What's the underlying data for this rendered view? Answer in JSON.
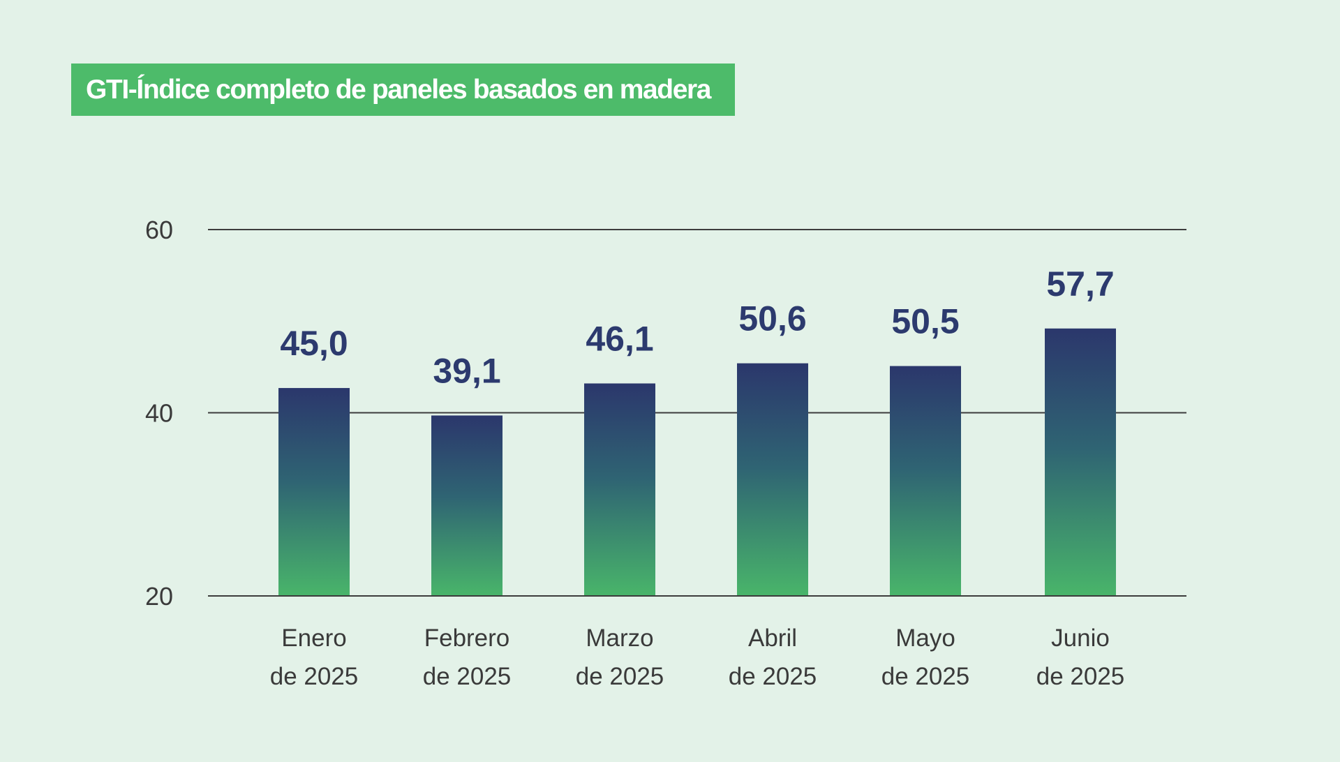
{
  "title": "GTI-Índice completo de paneles basados en madera",
  "chart_data": {
    "type": "bar",
    "title": "GTI-Índice completo de paneles basados en madera",
    "categories": [
      [
        "Enero",
        "de 2025"
      ],
      [
        "Febrero",
        "de 2025"
      ],
      [
        "Marzo",
        "de 2025"
      ],
      [
        "Abril",
        "de 2025"
      ],
      [
        "Mayo",
        "de 2025"
      ],
      [
        "Junio",
        "de 2025"
      ]
    ],
    "values": [
      45.0,
      39.1,
      46.1,
      50.6,
      50.5,
      57.7
    ],
    "value_labels": [
      "45,0",
      "39,1",
      "46,1",
      "50,6",
      "50,5",
      "57,7"
    ],
    "bar_tops": [
      42.7,
      39.7,
      43.2,
      45.4,
      45.1,
      49.2
    ],
    "yticks": [
      20,
      40,
      60
    ],
    "ylim": [
      20,
      60
    ],
    "xlabel": "",
    "ylabel": "",
    "grid": true,
    "colors": {
      "bar_top": "#2b376c",
      "bar_mid": "#2f6473",
      "bar_bottom": "#49b56a",
      "value_text": "#2c3a6e",
      "grid": "#3c3c3c"
    }
  }
}
